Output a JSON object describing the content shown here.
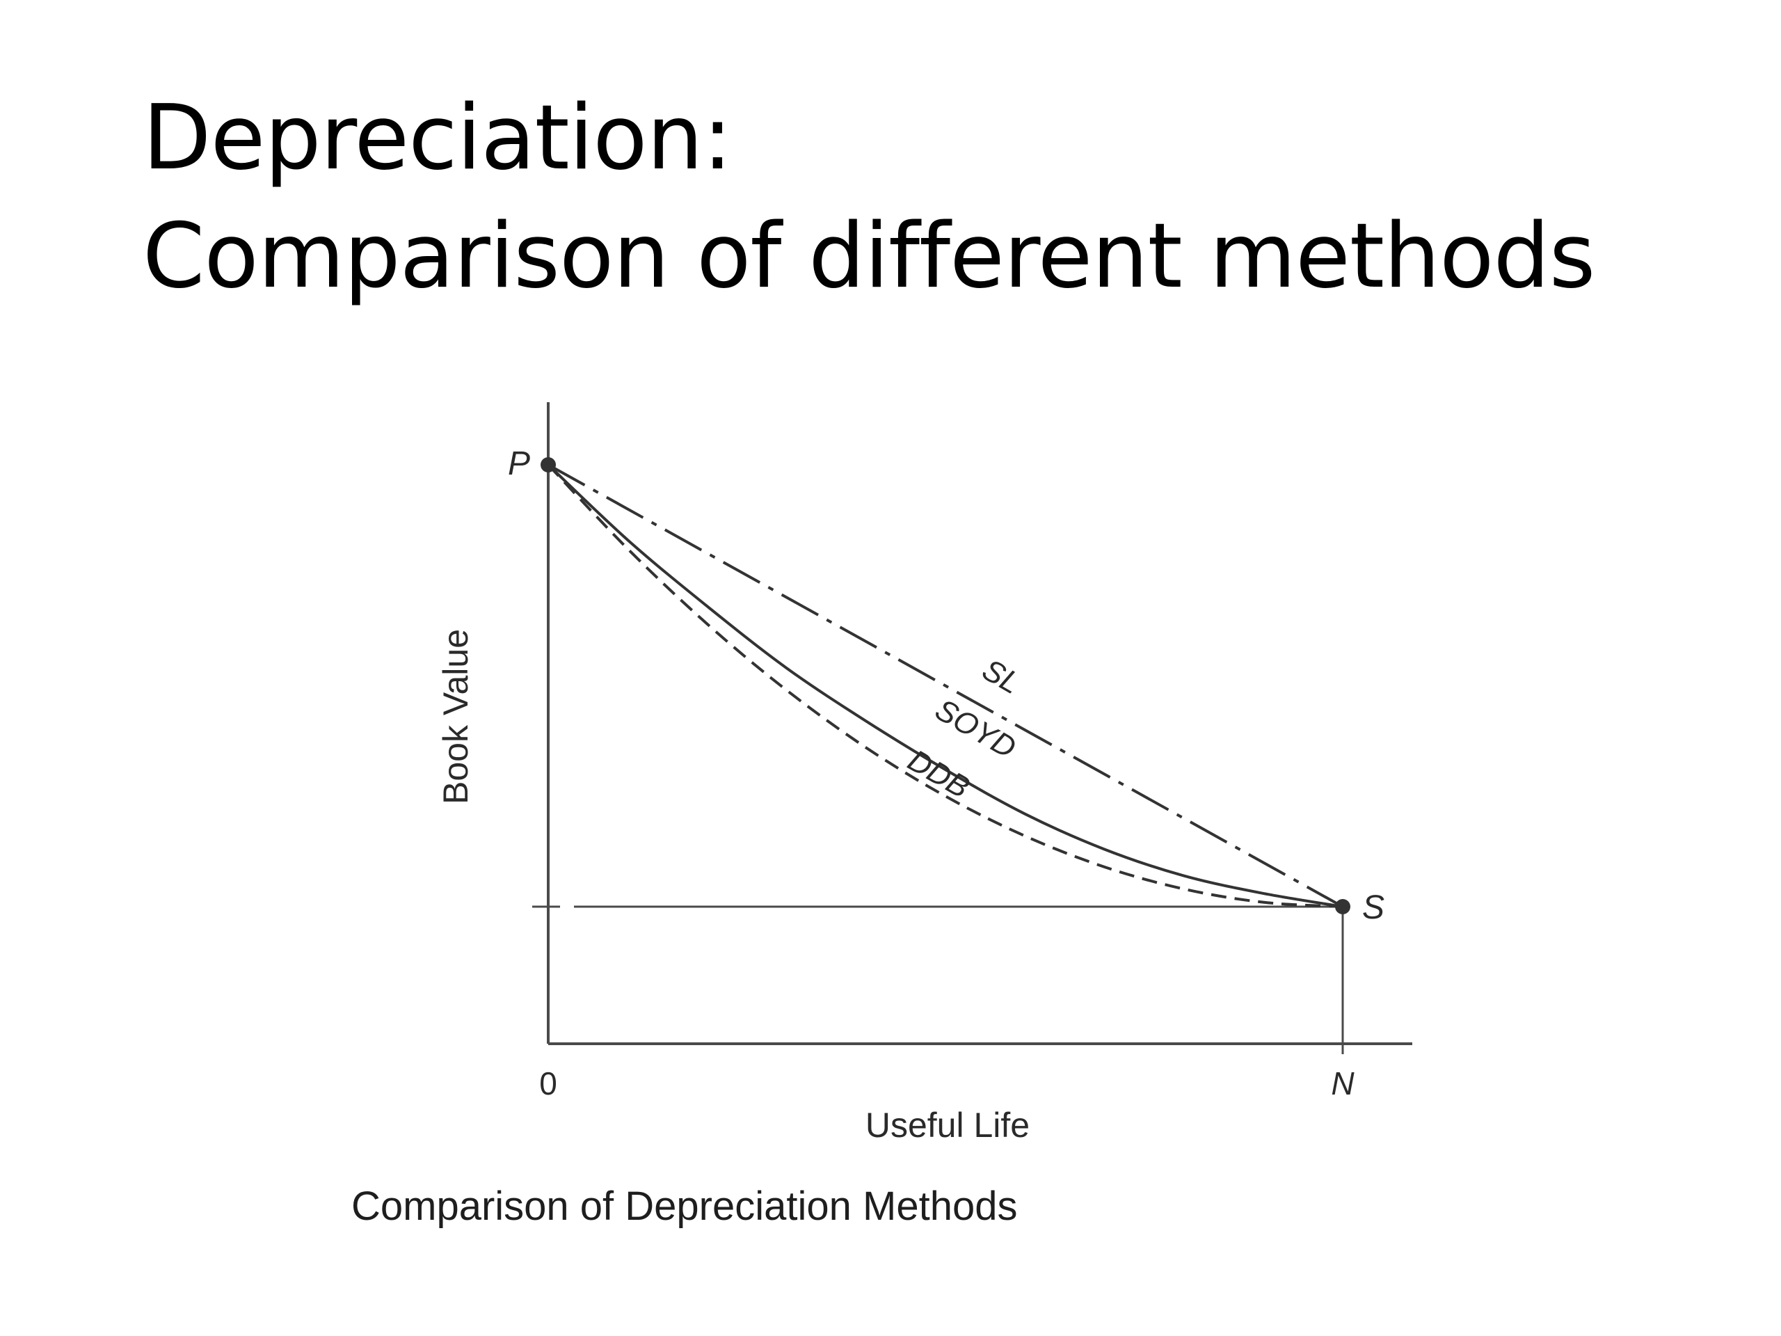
{
  "slide": {
    "title_line_1": "Depreciation:",
    "title_line_2": "Comparison of different methods",
    "figure_caption": "Comparison of Depreciation Methods"
  },
  "chart_data": {
    "type": "line",
    "xlabel": "Useful Life",
    "ylabel": "Book Value",
    "x_tick_labels": [
      "0",
      "N"
    ],
    "point_labels": {
      "start": "P",
      "end": "S"
    },
    "x": [
      0,
      0.1,
      0.2,
      0.3,
      0.4,
      0.5,
      0.6,
      0.7,
      0.8,
      0.9,
      1.0
    ],
    "series": [
      {
        "name": "SL",
        "style": "dash-dot",
        "values": [
          1.0,
          0.9,
          0.8,
          0.7,
          0.6,
          0.5,
          0.4,
          0.3,
          0.2,
          0.1,
          0.0
        ]
      },
      {
        "name": "SOYD",
        "style": "dashed",
        "values": [
          1.0,
          0.81,
          0.64,
          0.49,
          0.36,
          0.25,
          0.16,
          0.09,
          0.04,
          0.01,
          0.0
        ]
      },
      {
        "name": "DDB",
        "style": "solid",
        "values": [
          1.0,
          0.83,
          0.68,
          0.54,
          0.42,
          0.31,
          0.21,
          0.13,
          0.07,
          0.03,
          0.0
        ]
      }
    ],
    "salvage_line": true,
    "grid": false,
    "colors": {
      "axis": "#4a4a4a",
      "line": "#333333",
      "text": "#2a2a2a"
    }
  }
}
